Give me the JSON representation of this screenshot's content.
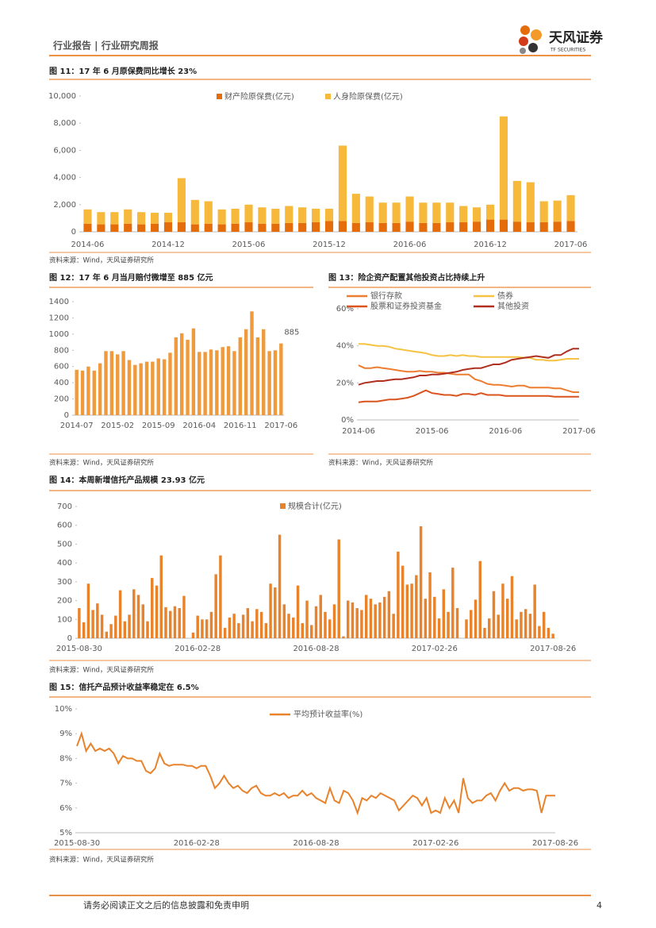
{
  "header": {
    "left": "行业报告 | 行业研究周报",
    "brand": "天风证券",
    "brand_en": "TF SECURITIES"
  },
  "chart_data": [
    {
      "type": "stacked_bar",
      "title": "图 11：17 年 6 月原保费同比增长 23%",
      "source": "资料来源：Wind，天风证券研究所",
      "categories": [
        "2014-06",
        null,
        null,
        null,
        null,
        null,
        "2014-12",
        null,
        null,
        null,
        null,
        null,
        "2015-06",
        null,
        null,
        null,
        null,
        null,
        "2015-12",
        null,
        null,
        null,
        null,
        null,
        "2016-06",
        null,
        null,
        null,
        null,
        null,
        "2016-12",
        null,
        null,
        null,
        null,
        null,
        "2017-06"
      ],
      "series": [
        {
          "name": "财产险原保费(亿元)",
          "color": "#e46c0a",
          "values": [
            600,
            550,
            550,
            600,
            550,
            600,
            700,
            700,
            550,
            600,
            550,
            600,
            700,
            600,
            600,
            650,
            650,
            700,
            800,
            800,
            650,
            700,
            650,
            650,
            750,
            650,
            650,
            700,
            700,
            750,
            900,
            900,
            750,
            700,
            700,
            750,
            800
          ]
        },
        {
          "name": "人身险原保费(亿元)",
          "color": "#f6b93b",
          "values": [
            1050,
            900,
            900,
            1050,
            900,
            800,
            700,
            3250,
            1800,
            1650,
            1100,
            1100,
            1300,
            1200,
            1100,
            1250,
            1150,
            1000,
            900,
            5550,
            2150,
            1900,
            1500,
            1500,
            1850,
            1500,
            1500,
            1450,
            1200,
            1050,
            1100,
            7600,
            3000,
            2950,
            1550,
            1550,
            1900
          ]
        }
      ],
      "ylim": [
        0,
        10000
      ],
      "yticks": [
        0,
        {
          "value": 2000,
          "label": "2,000"
        },
        {
          "value": 4000,
          "label": "4,000"
        },
        {
          "value": 6000,
          "label": "6,000"
        },
        {
          "value": 8000,
          "label": "8,000"
        },
        {
          "value": 10000,
          "label": "10,000"
        }
      ],
      "grid": false,
      "legend": "top"
    },
    {
      "type": "bar",
      "title": "图 12：17 年 6 月当月赔付微增至 885 亿元",
      "source": "资料来源：Wind，天风证券研究所",
      "color": "#f09a3e",
      "categories": [
        "2014-07",
        null,
        null,
        null,
        null,
        null,
        null,
        "2015-02",
        null,
        null,
        null,
        null,
        null,
        null,
        "2015-09",
        null,
        null,
        null,
        null,
        null,
        null,
        "2016-04",
        null,
        null,
        null,
        null,
        null,
        null,
        "2016-11",
        null,
        null,
        null,
        null,
        null,
        null,
        "2017-06"
      ],
      "values": [
        560,
        550,
        600,
        550,
        640,
        790,
        790,
        750,
        790,
        680,
        620,
        640,
        660,
        660,
        700,
        690,
        770,
        960,
        1010,
        930,
        1070,
        780,
        780,
        810,
        800,
        840,
        850,
        790,
        960,
        1060,
        1280,
        960,
        1060,
        790,
        800,
        885
      ],
      "value_labels": [
        null,
        null,
        null,
        null,
        null,
        null,
        null,
        null,
        null,
        null,
        null,
        null,
        null,
        null,
        null,
        null,
        null,
        null,
        null,
        null,
        null,
        null,
        null,
        null,
        null,
        null,
        null,
        null,
        null,
        null,
        null,
        null,
        null,
        null,
        null,
        "885"
      ],
      "ylim": [
        0,
        1400
      ],
      "yticks": [
        0,
        200,
        400,
        600,
        800,
        1000,
        1200,
        1400
      ],
      "grid": false
    },
    {
      "type": "line",
      "title": "图 13：险企资产配置其他投资占比持续上升",
      "source": "资料来源：Wind，天风证券研究所",
      "categories": [
        "2014-06",
        null,
        null,
        null,
        null,
        null,
        null,
        null,
        null,
        null,
        null,
        null,
        "2015-06",
        null,
        null,
        null,
        null,
        null,
        null,
        null,
        null,
        null,
        null,
        null,
        "2016-06",
        null,
        null,
        null,
        null,
        null,
        null,
        null,
        null,
        null,
        null,
        null,
        "2017-06"
      ],
      "series": [
        {
          "name": "银行存款",
          "color": "#ed7d31",
          "values": [
            29.5,
            28,
            28,
            28.5,
            28,
            27.5,
            27,
            26.5,
            26,
            26,
            26.5,
            26,
            26,
            25.5,
            25.5,
            25,
            24.5,
            24.5,
            24.5,
            22,
            21,
            19.5,
            19,
            19,
            18.5,
            18,
            18.5,
            18.5,
            17.5,
            17.5,
            17.5,
            17.5,
            17,
            17,
            16,
            15,
            15
          ]
        },
        {
          "name": "债券",
          "color": "#f5c242",
          "values": [
            41,
            41,
            40.5,
            40,
            40,
            39.5,
            38.5,
            38,
            37.5,
            37,
            36.5,
            36,
            35,
            34.5,
            34.5,
            35,
            34.5,
            35,
            34.5,
            34.5,
            34,
            34,
            34,
            34,
            34,
            34,
            34,
            33.5,
            33.5,
            32.5,
            32.5,
            32,
            32,
            32.5,
            33,
            33,
            33
          ]
        },
        {
          "name": "股票和证券投资基金",
          "color": "#d9541e",
          "values": [
            9.5,
            10,
            10,
            10,
            10.5,
            11,
            11,
            11.5,
            12,
            13,
            14.5,
            16,
            14.5,
            14,
            13.5,
            13.5,
            13,
            14,
            14,
            13.5,
            14.5,
            13.5,
            13.5,
            13.5,
            13,
            13,
            13,
            13,
            13,
            13,
            13,
            13,
            12.5,
            12.5,
            12.5,
            12.5,
            12.5
          ]
        },
        {
          "name": "其他投资",
          "color": "#b03020",
          "values": [
            19,
            20,
            20.5,
            21,
            21,
            21.5,
            22,
            22,
            22.5,
            23,
            24,
            24,
            24.5,
            24.5,
            25,
            25.5,
            26,
            27,
            27.5,
            28,
            28,
            29,
            30,
            30,
            31,
            32.5,
            33,
            33.5,
            34,
            34.5,
            34,
            33.5,
            35,
            35,
            37,
            38.5,
            38.5
          ]
        }
      ],
      "ylim": [
        0,
        60
      ],
      "yticks": [
        {
          "value": 0,
          "label": "0%"
        },
        {
          "value": 20,
          "label": "20%"
        },
        {
          "value": 40,
          "label": "40%"
        },
        {
          "value": 60,
          "label": "60%"
        }
      ],
      "grid": false,
      "legend": "top"
    },
    {
      "type": "bar",
      "title": "图 14：本周新增信托产品规模 23.93 亿元",
      "source": "资料来源：Wind，天风证券研究所",
      "color": "#e8822b",
      "legend": "top",
      "series_name": "规模合计(亿元)",
      "categories": [
        "2015-08-30",
        null,
        null,
        null,
        null,
        null,
        null,
        null,
        null,
        null,
        null,
        null,
        null,
        null,
        null,
        null,
        null,
        null,
        null,
        null,
        null,
        null,
        null,
        null,
        null,
        null,
        "2016-02-28",
        null,
        null,
        null,
        null,
        null,
        null,
        null,
        null,
        null,
        null,
        null,
        null,
        null,
        null,
        null,
        null,
        null,
        null,
        null,
        null,
        null,
        null,
        null,
        null,
        null,
        "2016-08-28",
        null,
        null,
        null,
        null,
        null,
        null,
        null,
        null,
        null,
        null,
        null,
        null,
        null,
        null,
        null,
        null,
        null,
        null,
        null,
        null,
        null,
        null,
        null,
        null,
        null,
        "2017-02-26",
        null,
        null,
        null,
        null,
        null,
        null,
        null,
        null,
        null,
        null,
        null,
        null,
        null,
        null,
        null,
        null,
        null,
        null,
        null,
        null,
        null,
        null,
        null,
        null,
        null,
        "2017-08-26"
      ],
      "values": [
        160,
        85,
        290,
        150,
        185,
        125,
        35,
        75,
        120,
        255,
        90,
        125,
        260,
        230,
        180,
        90,
        320,
        280,
        440,
        165,
        145,
        170,
        160,
        225,
        0,
        30,
        120,
        100,
        100,
        140,
        340,
        440,
        55,
        110,
        130,
        80,
        125,
        160,
        90,
        155,
        140,
        80,
        290,
        270,
        550,
        180,
        130,
        110,
        280,
        80,
        200,
        70,
        170,
        230,
        140,
        100,
        180,
        525,
        10,
        200,
        190,
        160,
        150,
        230,
        210,
        180,
        190,
        220,
        250,
        130,
        460,
        385,
        285,
        290,
        335,
        595,
        210,
        350,
        220,
        105,
        260,
        140,
        375,
        160,
        0,
        100,
        150,
        205,
        410,
        55,
        105,
        250,
        125,
        290,
        210,
        330,
        100,
        140,
        155,
        130,
        285,
        65,
        140,
        55,
        23.93
      ],
      "ylim": [
        0,
        700
      ],
      "yticks": [
        0,
        100,
        200,
        300,
        400,
        500,
        600,
        700
      ],
      "grid": false
    },
    {
      "type": "line",
      "title": "图 15：信托产品预计收益率稳定在 6.5%",
      "source": "资料来源：Wind，天风证券研究所",
      "legend": "top",
      "categories": [
        "2015-08-30",
        null,
        null,
        null,
        null,
        null,
        null,
        null,
        null,
        null,
        null,
        null,
        null,
        null,
        null,
        null,
        null,
        null,
        null,
        null,
        null,
        null,
        null,
        null,
        null,
        null,
        "2016-02-28",
        null,
        null,
        null,
        null,
        null,
        null,
        null,
        null,
        null,
        null,
        null,
        null,
        null,
        null,
        null,
        null,
        null,
        null,
        null,
        null,
        null,
        null,
        null,
        null,
        null,
        "2016-08-28",
        null,
        null,
        null,
        null,
        null,
        null,
        null,
        null,
        null,
        null,
        null,
        null,
        null,
        null,
        null,
        null,
        null,
        null,
        null,
        null,
        null,
        null,
        null,
        null,
        null,
        "2017-02-26",
        null,
        null,
        null,
        null,
        null,
        null,
        null,
        null,
        null,
        null,
        null,
        null,
        null,
        null,
        null,
        null,
        null,
        null,
        null,
        null,
        null,
        null,
        null,
        null,
        null,
        "2017-08-26"
      ],
      "series": [
        {
          "name": "平均预计收益率(%)",
          "color": "#e8822b",
          "values": [
            8.5,
            9.0,
            8.3,
            8.6,
            8.3,
            8.4,
            8.3,
            8.4,
            8.2,
            7.8,
            8.1,
            8.0,
            8.0,
            7.9,
            7.9,
            7.5,
            7.4,
            7.6,
            8.2,
            7.8,
            7.7,
            7.75,
            7.75,
            7.75,
            7.7,
            7.7,
            7.6,
            7.7,
            7.7,
            7.3,
            6.8,
            7.0,
            7.3,
            7.0,
            6.8,
            6.9,
            6.7,
            6.6,
            6.8,
            6.9,
            6.6,
            6.5,
            6.5,
            6.6,
            6.5,
            6.6,
            6.4,
            6.5,
            6.5,
            6.7,
            6.5,
            6.6,
            6.4,
            6.3,
            6.2,
            6.8,
            6.3,
            6.2,
            6.7,
            6.6,
            6.3,
            5.8,
            6.4,
            6.3,
            6.5,
            6.4,
            6.6,
            6.5,
            6.4,
            6.3,
            5.9,
            6.1,
            6.3,
            6.5,
            6.4,
            6.1,
            6.4,
            5.8,
            5.9,
            5.8,
            6.4,
            6.0,
            6.3,
            5.8,
            7.2,
            6.4,
            6.2,
            6.3,
            6.3,
            6.5,
            6.6,
            6.3,
            6.7,
            7.0,
            6.7,
            6.8,
            6.8,
            6.7,
            6.75,
            6.75,
            6.7,
            5.8,
            6.5,
            6.5,
            6.5
          ]
        }
      ],
      "ylim": [
        5,
        10
      ],
      "yticks": [
        {
          "value": 5,
          "label": "5%"
        },
        {
          "value": 6,
          "label": "6%"
        },
        {
          "value": 7,
          "label": "7%"
        },
        {
          "value": 8,
          "label": "8%"
        },
        {
          "value": 9,
          "label": "9%"
        },
        {
          "value": 10,
          "label": "10%"
        }
      ],
      "grid": false
    }
  ],
  "footer": {
    "disclaimer": "请务必阅读正文之后的信息披露和免责申明",
    "page": "4"
  }
}
